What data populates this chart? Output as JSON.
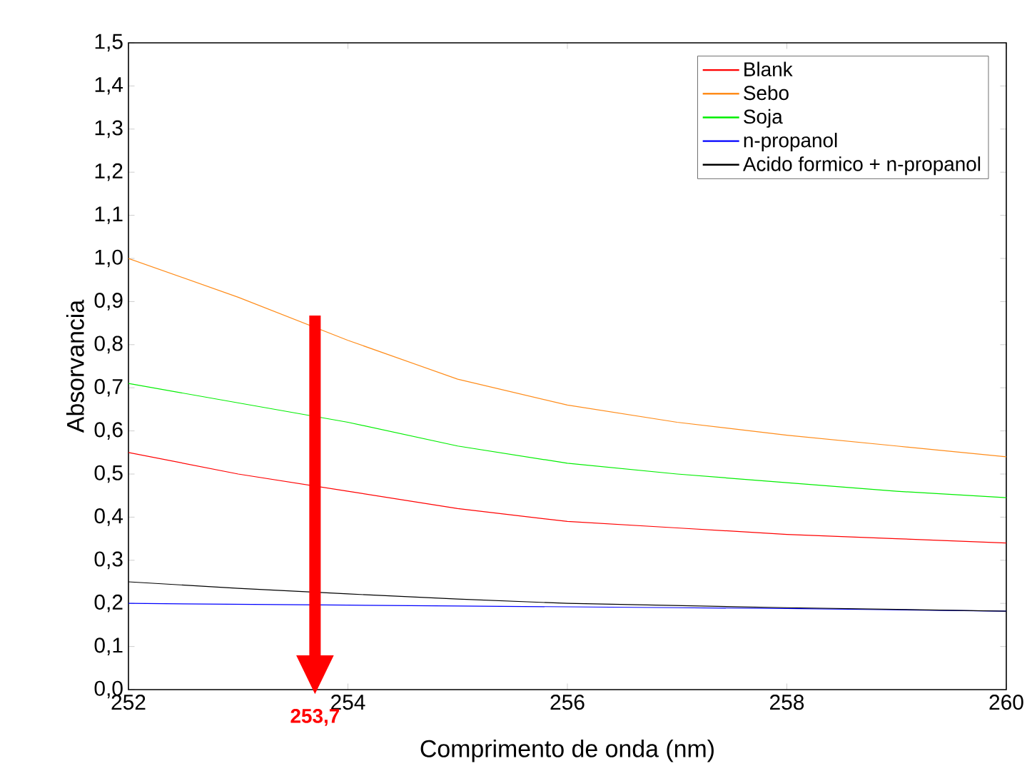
{
  "chart_data": {
    "type": "line",
    "xlabel": "Comprimento de onda (nm)",
    "ylabel": "Absorvancia",
    "x": [
      252,
      253,
      254,
      255,
      256,
      257,
      258,
      259,
      260
    ],
    "series": [
      {
        "name": "Blank",
        "color": "#ff0000",
        "values": [
          0.55,
          0.5,
          0.46,
          0.42,
          0.39,
          0.375,
          0.36,
          0.35,
          0.34
        ]
      },
      {
        "name": "Sebo",
        "color": "#ff8c1a",
        "values": [
          1.0,
          0.91,
          0.81,
          0.72,
          0.66,
          0.62,
          0.59,
          0.565,
          0.54
        ]
      },
      {
        "name": "Soja",
        "color": "#00ee00",
        "values": [
          0.71,
          0.665,
          0.62,
          0.565,
          0.525,
          0.5,
          0.48,
          0.46,
          0.445
        ]
      },
      {
        "name": "n-propanol",
        "color": "#0000ff",
        "values": [
          0.2,
          0.198,
          0.196,
          0.194,
          0.192,
          0.19,
          0.188,
          0.185,
          0.182
        ]
      },
      {
        "name": "Acido formico + n-propanol",
        "color": "#000000",
        "values": [
          0.25,
          0.235,
          0.222,
          0.21,
          0.2,
          0.195,
          0.19,
          0.186,
          0.182
        ]
      }
    ],
    "xlim": [
      252,
      260
    ],
    "ylim": [
      0,
      1.5
    ],
    "xticks": [
      252,
      254,
      256,
      258,
      260
    ],
    "yticks": [
      {
        "value": 0,
        "label": "0,0"
      },
      {
        "value": 0.1,
        "label": "0,1"
      },
      {
        "value": 0.2,
        "label": "0,2"
      },
      {
        "value": 0.3,
        "label": "0,3"
      },
      {
        "value": 0.4,
        "label": "0,4"
      },
      {
        "value": 0.5,
        "label": "0,5"
      },
      {
        "value": 0.6,
        "label": "0,6"
      },
      {
        "value": 0.7,
        "label": "0,7"
      },
      {
        "value": 0.8,
        "label": "0,8"
      },
      {
        "value": 0.9,
        "label": "0,9"
      },
      {
        "value": 1.0,
        "label": "1,0"
      },
      {
        "value": 1.1,
        "label": "1,1"
      },
      {
        "value": 1.2,
        "label": "1,2"
      },
      {
        "value": 1.3,
        "label": "1,3"
      },
      {
        "value": 1.4,
        "label": "1,4"
      },
      {
        "value": 1.5,
        "label": "1,5"
      }
    ],
    "ref_lines": [
      {
        "axis": "x",
        "value": 253.7,
        "label": "253,7",
        "color": "#ff0000"
      }
    ],
    "legend": "top right",
    "grid": false,
    "line_style": "solid"
  }
}
